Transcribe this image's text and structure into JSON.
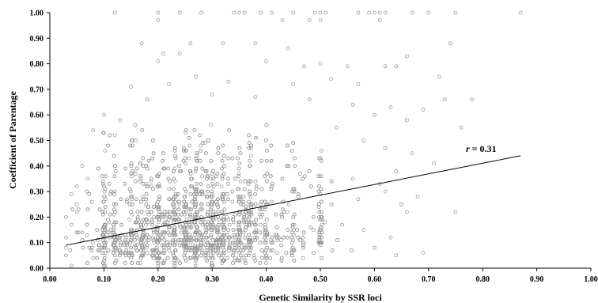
{
  "chart_data": {
    "type": "scatter",
    "title": "",
    "xlabel": "Genetic Similarity by SSR loci",
    "ylabel": "Coefficient of Parentage",
    "xlim": [
      0.0,
      1.0
    ],
    "ylim": [
      0.0,
      1.0
    ],
    "x_ticks": [
      "0.00",
      "0.10",
      "0.20",
      "0.30",
      "0.40",
      "0.50",
      "0.60",
      "0.70",
      "0.80",
      "0.90",
      "1.00"
    ],
    "y_ticks": [
      "0.00",
      "0.10",
      "0.20",
      "0.30",
      "0.40",
      "0.50",
      "0.60",
      "0.70",
      "0.80",
      "0.90",
      "1.00"
    ],
    "grid": false,
    "legend": "none",
    "marker": "open-circle",
    "marker_color": "#9a9a9a",
    "series": [
      {
        "points": [
          [
            0.12,
            1.0
          ],
          [
            0.2,
            1.0
          ],
          [
            0.24,
            1.0
          ],
          [
            0.28,
            1.0
          ],
          [
            0.34,
            1.0
          ],
          [
            0.35,
            1.0
          ],
          [
            0.36,
            1.0
          ],
          [
            0.39,
            1.0
          ],
          [
            0.41,
            1.0
          ],
          [
            0.45,
            1.0
          ],
          [
            0.49,
            1.0
          ],
          [
            0.5,
            1.0
          ],
          [
            0.51,
            1.0
          ],
          [
            0.57,
            1.0
          ],
          [
            0.59,
            1.0
          ],
          [
            0.6,
            1.0
          ],
          [
            0.61,
            1.0
          ],
          [
            0.62,
            1.0
          ],
          [
            0.67,
            1.0
          ],
          [
            0.7,
            1.0
          ],
          [
            0.75,
            1.0
          ],
          [
            0.87,
            1.0
          ],
          [
            0.2,
            0.97
          ],
          [
            0.43,
            0.97
          ],
          [
            0.48,
            0.97
          ],
          [
            0.5,
            0.97
          ],
          [
            0.61,
            0.97
          ],
          [
            0.17,
            0.88
          ],
          [
            0.26,
            0.88
          ],
          [
            0.32,
            0.88
          ],
          [
            0.38,
            0.88
          ],
          [
            0.74,
            0.88
          ],
          [
            0.44,
            0.86
          ],
          [
            0.21,
            0.84
          ],
          [
            0.24,
            0.84
          ],
          [
            0.2,
            0.81
          ],
          [
            0.4,
            0.81
          ],
          [
            0.47,
            0.79
          ],
          [
            0.5,
            0.8
          ],
          [
            0.55,
            0.79
          ],
          [
            0.62,
            0.79
          ],
          [
            0.64,
            0.79
          ],
          [
            0.66,
            0.83
          ],
          [
            0.72,
            0.75
          ],
          [
            0.15,
            0.71
          ],
          [
            0.22,
            0.72
          ],
          [
            0.27,
            0.75
          ],
          [
            0.33,
            0.73
          ],
          [
            0.45,
            0.72
          ],
          [
            0.52,
            0.74
          ],
          [
            0.57,
            0.72
          ],
          [
            0.78,
            0.66
          ],
          [
            0.73,
            0.66
          ],
          [
            0.18,
            0.66
          ],
          [
            0.3,
            0.68
          ],
          [
            0.38,
            0.67
          ],
          [
            0.48,
            0.66
          ],
          [
            0.56,
            0.64
          ],
          [
            0.63,
            0.63
          ],
          [
            0.66,
            0.58
          ],
          [
            0.69,
            0.62
          ],
          [
            0.6,
            0.6
          ],
          [
            0.1,
            0.6
          ],
          [
            0.13,
            0.58
          ],
          [
            0.08,
            0.54
          ],
          [
            0.12,
            0.52
          ],
          [
            0.53,
            0.55
          ],
          [
            0.76,
            0.55
          ],
          [
            0.58,
            0.5
          ],
          [
            0.62,
            0.47
          ],
          [
            0.67,
            0.45
          ],
          [
            0.71,
            0.41
          ],
          [
            0.64,
            0.38
          ],
          [
            0.61,
            0.33
          ],
          [
            0.56,
            0.35
          ],
          [
            0.68,
            0.28
          ],
          [
            0.65,
            0.25
          ],
          [
            0.62,
            0.3
          ],
          [
            0.57,
            0.27
          ],
          [
            0.66,
            0.22
          ],
          [
            0.75,
            0.22
          ],
          [
            0.63,
            0.12
          ],
          [
            0.64,
            0.05
          ],
          [
            0.69,
            0.06
          ],
          [
            0.6,
            0.08
          ],
          [
            0.58,
            0.15
          ],
          [
            0.05,
            0.32
          ],
          [
            0.04,
            0.29
          ],
          [
            0.03,
            0.2
          ],
          [
            0.03,
            0.12
          ],
          [
            0.04,
            0.17
          ],
          [
            0.05,
            0.25
          ],
          [
            0.03,
            0.08
          ],
          [
            0.03,
            0.05
          ],
          [
            0.04,
            0.01
          ],
          [
            0.05,
            0.22
          ],
          [
            0.06,
            0.14
          ],
          [
            0.07,
            0.35
          ],
          [
            0.06,
            0.4
          ]
        ],
        "dense_cloud": {
          "note": "thousands of overlapping open-circle markers; bulk of the data",
          "x_range": [
            0.04,
            0.58
          ],
          "x_center": 0.27,
          "y_range": [
            0.0,
            0.62
          ],
          "y_center": 0.2
        }
      }
    ],
    "trendline": {
      "x": [
        0.03,
        0.87
      ],
      "y": [
        0.09,
        0.44
      ]
    },
    "annotation": {
      "prefix": "r",
      "text": " = 0.31"
    }
  }
}
